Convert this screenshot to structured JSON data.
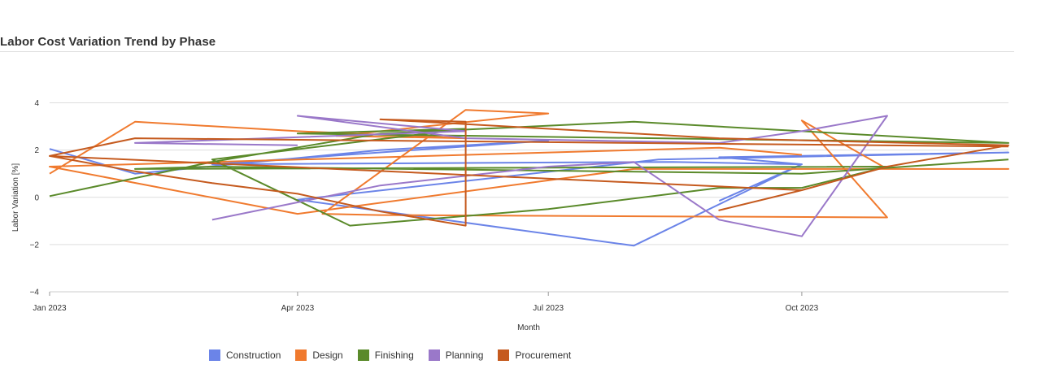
{
  "chart_data": {
    "type": "line",
    "title": "Labor Cost Variation Trend by Phase",
    "xlabel": "Month",
    "ylabel": "Labor Variation [%]",
    "ylim": [
      -4,
      4.5
    ],
    "yticks": [
      -4,
      -2,
      0,
      2,
      4
    ],
    "xlim": [
      "2023-01-01",
      "2023-12-15"
    ],
    "xticks": [
      {
        "date": "2023-01-01",
        "label": "Jan 2023"
      },
      {
        "date": "2023-04-01",
        "label": "Apr 2023"
      },
      {
        "date": "2023-07-01",
        "label": "Jul 2023"
      },
      {
        "date": "2023-10-01",
        "label": "Oct 2023"
      }
    ],
    "grid": "horizontal",
    "legend_position": "bottom",
    "series": [
      {
        "name": "Construction",
        "color": "#6b84e8",
        "points": [
          [
            "2023-01-01",
            2.05
          ],
          [
            "2023-02-01",
            1.0
          ],
          [
            "2023-05-01",
            2.0
          ],
          [
            "2023-07-01",
            2.4
          ],
          [
            "2023-03-01",
            1.4
          ],
          [
            "2023-08-15",
            1.5
          ],
          [
            "2023-10-01",
            1.4
          ],
          [
            "2023-09-01",
            1.7
          ],
          [
            "2023-12-15",
            1.9
          ],
          [
            "2023-08-10",
            1.6
          ],
          [
            "2023-04-01",
            -0.1
          ],
          [
            "2023-08-01",
            -2.05
          ],
          [
            "2023-10-01",
            1.4
          ],
          [
            "2023-09-01",
            -0.15
          ]
        ]
      },
      {
        "name": "Design",
        "color": "#f07a2e",
        "points": [
          [
            "2023-01-01",
            1.0
          ],
          [
            "2023-02-01",
            3.2
          ],
          [
            "2023-04-01",
            2.8
          ],
          [
            "2023-06-01",
            2.5
          ],
          [
            "2023-04-15",
            2.6
          ],
          [
            "2023-07-01",
            3.55
          ],
          [
            "2023-06-01",
            3.7
          ],
          [
            "2023-04-10",
            -0.7
          ],
          [
            "2023-05-01",
            -0.75
          ],
          [
            "2023-11-01",
            -0.85
          ],
          [
            "2023-10-01",
            3.25
          ],
          [
            "2023-11-01",
            1.2
          ],
          [
            "2023-12-15",
            1.2
          ],
          [
            "2023-08-01",
            1.2
          ],
          [
            "2023-04-01",
            -0.7
          ],
          [
            "2023-01-01",
            1.3
          ],
          [
            "2023-09-01",
            2.1
          ],
          [
            "2023-10-01",
            1.8
          ]
        ]
      },
      {
        "name": "Finishing",
        "color": "#5a8a2a",
        "points": [
          [
            "2023-01-01",
            0.05
          ],
          [
            "2023-03-01",
            1.5
          ],
          [
            "2023-05-01",
            2.7
          ],
          [
            "2023-08-01",
            3.2
          ],
          [
            "2023-10-01",
            2.8
          ],
          [
            "2023-12-15",
            2.3
          ],
          [
            "2023-04-01",
            2.7
          ],
          [
            "2023-06-01",
            2.9
          ],
          [
            "2023-03-01",
            1.6
          ],
          [
            "2023-04-20",
            -1.2
          ],
          [
            "2023-07-01",
            -0.5
          ],
          [
            "2023-09-01",
            0.4
          ],
          [
            "2023-10-01",
            0.4
          ],
          [
            "2023-11-01",
            1.3
          ],
          [
            "2023-02-01",
            1.2
          ],
          [
            "2023-03-01",
            1.3
          ],
          [
            "2023-10-01",
            1.0
          ],
          [
            "2023-12-15",
            1.6
          ]
        ]
      },
      {
        "name": "Planning",
        "color": "#9a78c9",
        "points": [
          [
            "2023-03-01",
            -0.95
          ],
          [
            "2023-05-01",
            0.5
          ],
          [
            "2023-07-01",
            1.3
          ],
          [
            "2023-08-01",
            1.5
          ],
          [
            "2023-09-01",
            -0.95
          ],
          [
            "2023-10-01",
            -1.65
          ],
          [
            "2023-11-01",
            3.45
          ],
          [
            "2023-10-01",
            2.8
          ],
          [
            "2023-09-01",
            2.3
          ],
          [
            "2023-06-01",
            2.5
          ],
          [
            "2023-04-01",
            3.45
          ],
          [
            "2023-06-01",
            2.8
          ],
          [
            "2023-02-01",
            2.3
          ],
          [
            "2023-04-01",
            2.2
          ]
        ]
      },
      {
        "name": "Procurement",
        "color": "#c55a1e",
        "points": [
          [
            "2023-01-01",
            1.75
          ],
          [
            "2023-02-01",
            1.1
          ],
          [
            "2023-03-01",
            0.6
          ],
          [
            "2023-04-01",
            0.15
          ],
          [
            "2023-05-01",
            -0.6
          ],
          [
            "2023-06-01",
            -1.2
          ],
          [
            "2023-06-01",
            3.2
          ],
          [
            "2023-05-01",
            3.3
          ],
          [
            "2023-09-01",
            2.5
          ],
          [
            "2023-12-15",
            2.2
          ],
          [
            "2023-11-01",
            1.3
          ],
          [
            "2023-10-01",
            0.3
          ],
          [
            "2023-09-01",
            -0.55
          ],
          [
            "2023-10-01",
            0.3
          ],
          [
            "2023-01-01",
            1.75
          ],
          [
            "2023-02-01",
            2.5
          ],
          [
            "2023-08-01",
            2.3
          ],
          [
            "2023-12-15",
            2.15
          ]
        ]
      }
    ]
  }
}
